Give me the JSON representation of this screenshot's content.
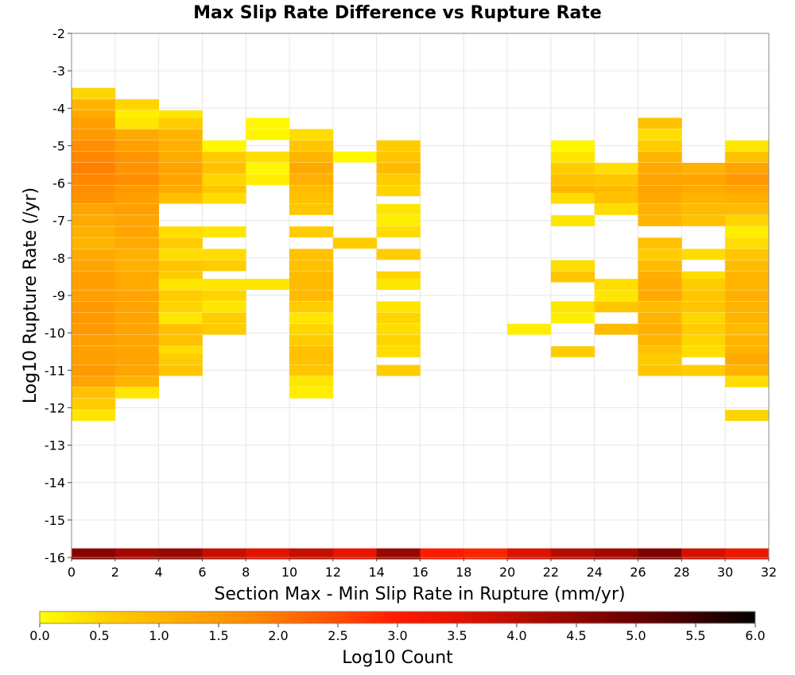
{
  "chart_data": {
    "type": "heatmap",
    "title": "Max Slip Rate Difference vs Rupture Rate",
    "xlabel": "Section Max - Min Slip Rate in Rupture (mm/yr)",
    "ylabel": "Log10 Rupture Rate (/yr)",
    "xlim": [
      0,
      32
    ],
    "ylim": [
      -16,
      -2
    ],
    "x_ticks": [
      "0",
      "2",
      "4",
      "6",
      "8",
      "10",
      "12",
      "14",
      "16",
      "18",
      "20",
      "22",
      "24",
      "26",
      "28",
      "30",
      "32"
    ],
    "y_ticks": [
      "-2",
      "-3",
      "-4",
      "-5",
      "-6",
      "-7",
      "-8",
      "-9",
      "-10",
      "-11",
      "-12",
      "-13",
      "-14",
      "-15",
      "-16"
    ],
    "grid": true,
    "colorbar": {
      "label": "Log10 Count",
      "range": [
        0,
        6
      ],
      "ticks": [
        "0.0",
        "0.5",
        "1.0",
        "1.5",
        "2.0",
        "2.5",
        "3.0",
        "3.5",
        "4.0",
        "4.5",
        "5.0",
        "5.5",
        "6.0"
      ],
      "colors": [
        "#ffff00",
        "#ffcc00",
        "#ffaa00",
        "#ff8800",
        "#ff5500",
        "#ff1a00",
        "#dd1100",
        "#aa0a00",
        "#770000",
        "#440000",
        "#000000"
      ]
    },
    "bin": {
      "x_width": 2,
      "y_height": 0.285
    },
    "cells": [
      [
        0,
        -3.6,
        0.5
      ],
      [
        0,
        -3.9,
        1.0
      ],
      [
        0,
        -4.2,
        1.2
      ],
      [
        0,
        -4.4,
        1.4
      ],
      [
        0,
        -4.7,
        1.5
      ],
      [
        0,
        -5.0,
        1.7
      ],
      [
        0,
        -5.3,
        1.8
      ],
      [
        0,
        -5.6,
        1.9
      ],
      [
        0,
        -5.9,
        1.8
      ],
      [
        0,
        -6.2,
        1.7
      ],
      [
        0,
        -6.4,
        1.6
      ],
      [
        0,
        -6.7,
        1.3
      ],
      [
        0,
        -7.0,
        1.2
      ],
      [
        0,
        -7.3,
        1.1
      ],
      [
        0,
        -7.6,
        1.0
      ],
      [
        0,
        -7.9,
        1.2
      ],
      [
        0,
        -8.2,
        1.3
      ],
      [
        0,
        -8.5,
        1.4
      ],
      [
        0,
        -8.7,
        1.4
      ],
      [
        0,
        -9.0,
        1.4
      ],
      [
        0,
        -9.3,
        1.5
      ],
      [
        0,
        -9.6,
        1.5
      ],
      [
        0,
        -9.9,
        1.5
      ],
      [
        0,
        -10.2,
        1.4
      ],
      [
        0,
        -10.5,
        1.4
      ],
      [
        0,
        -10.7,
        1.4
      ],
      [
        0,
        -11.0,
        1.5
      ],
      [
        0,
        -11.3,
        1.3
      ],
      [
        0,
        -11.6,
        0.8
      ],
      [
        0,
        -11.9,
        0.6
      ],
      [
        0,
        -12.2,
        0.3
      ],
      [
        2,
        -3.9,
        0.5
      ],
      [
        2,
        -4.2,
        0.2
      ],
      [
        2,
        -4.4,
        0.3
      ],
      [
        2,
        -4.7,
        1.2
      ],
      [
        2,
        -5.0,
        1.4
      ],
      [
        2,
        -5.3,
        1.6
      ],
      [
        2,
        -5.6,
        1.6
      ],
      [
        2,
        -5.9,
        1.7
      ],
      [
        2,
        -6.2,
        1.5
      ],
      [
        2,
        -6.4,
        1.4
      ],
      [
        2,
        -6.7,
        1.4
      ],
      [
        2,
        -7.0,
        1.3
      ],
      [
        2,
        -7.3,
        1.3
      ],
      [
        2,
        -7.6,
        1.2
      ],
      [
        2,
        -7.9,
        1.1
      ],
      [
        2,
        -8.2,
        1.1
      ],
      [
        2,
        -8.5,
        1.2
      ],
      [
        2,
        -8.7,
        1.2
      ],
      [
        2,
        -9.0,
        1.3
      ],
      [
        2,
        -9.3,
        1.3
      ],
      [
        2,
        -9.6,
        1.3
      ],
      [
        2,
        -9.9,
        1.3
      ],
      [
        2,
        -10.2,
        1.3
      ],
      [
        2,
        -10.5,
        1.3
      ],
      [
        2,
        -10.7,
        1.3
      ],
      [
        2,
        -11.0,
        1.3
      ],
      [
        2,
        -11.3,
        1.0
      ],
      [
        2,
        -11.6,
        0.3
      ],
      [
        4,
        -4.2,
        0.3
      ],
      [
        4,
        -4.4,
        0.6
      ],
      [
        4,
        -4.7,
        1.0
      ],
      [
        4,
        -5.0,
        1.1
      ],
      [
        4,
        -5.3,
        1.2
      ],
      [
        4,
        -5.6,
        1.3
      ],
      [
        4,
        -5.9,
        1.3
      ],
      [
        4,
        -6.2,
        1.2
      ],
      [
        4,
        -6.4,
        0.8
      ],
      [
        4,
        -7.3,
        0.4
      ],
      [
        4,
        -7.6,
        0.6
      ],
      [
        4,
        -7.9,
        0.4
      ],
      [
        4,
        -8.2,
        0.7
      ],
      [
        4,
        -8.5,
        0.6
      ],
      [
        4,
        -8.7,
        0.3
      ],
      [
        4,
        -9.0,
        0.6
      ],
      [
        4,
        -9.3,
        0.5
      ],
      [
        4,
        -9.6,
        0.3
      ],
      [
        4,
        -9.9,
        0.8
      ],
      [
        4,
        -10.2,
        0.8
      ],
      [
        4,
        -10.5,
        0.4
      ],
      [
        4,
        -10.7,
        0.6
      ],
      [
        4,
        -11.0,
        0.7
      ],
      [
        6,
        -5.0,
        0.1
      ],
      [
        6,
        -5.3,
        0.6
      ],
      [
        6,
        -5.6,
        0.8
      ],
      [
        6,
        -5.9,
        0.5
      ],
      [
        6,
        -6.2,
        0.7
      ],
      [
        6,
        -6.4,
        0.4
      ],
      [
        6,
        -7.3,
        0.3
      ],
      [
        6,
        -7.9,
        0.4
      ],
      [
        6,
        -8.2,
        0.6
      ],
      [
        6,
        -8.7,
        0.3
      ],
      [
        6,
        -9.0,
        0.5
      ],
      [
        6,
        -9.3,
        0.3
      ],
      [
        6,
        -9.6,
        0.6
      ],
      [
        6,
        -9.9,
        0.6
      ],
      [
        8,
        -4.4,
        0.1
      ],
      [
        8,
        -4.7,
        0.1
      ],
      [
        8,
        -5.3,
        0.4
      ],
      [
        8,
        -5.6,
        0.1
      ],
      [
        8,
        -5.9,
        0.2
      ],
      [
        8,
        -8.7,
        0.3
      ],
      [
        10,
        -4.7,
        0.4
      ],
      [
        10,
        -5.0,
        0.7
      ],
      [
        10,
        -5.3,
        1.0
      ],
      [
        10,
        -5.6,
        1.2
      ],
      [
        10,
        -5.9,
        1.1
      ],
      [
        10,
        -6.2,
        0.9
      ],
      [
        10,
        -6.4,
        0.8
      ],
      [
        10,
        -6.7,
        0.7
      ],
      [
        10,
        -7.3,
        0.6
      ],
      [
        10,
        -7.9,
        0.8
      ],
      [
        10,
        -8.2,
        0.8
      ],
      [
        10,
        -8.5,
        0.9
      ],
      [
        10,
        -8.7,
        0.9
      ],
      [
        10,
        -9.0,
        0.9
      ],
      [
        10,
        -9.3,
        0.6
      ],
      [
        10,
        -9.6,
        0.3
      ],
      [
        10,
        -9.9,
        0.5
      ],
      [
        10,
        -10.2,
        0.6
      ],
      [
        10,
        -10.5,
        0.8
      ],
      [
        10,
        -10.7,
        0.8
      ],
      [
        10,
        -11.0,
        0.7
      ],
      [
        10,
        -11.3,
        0.3
      ],
      [
        10,
        -11.6,
        0.2
      ],
      [
        12,
        -5.3,
        0.1
      ],
      [
        12,
        -7.6,
        0.6
      ],
      [
        14,
        -5.0,
        0.6
      ],
      [
        14,
        -5.3,
        0.7
      ],
      [
        14,
        -5.6,
        0.9
      ],
      [
        14,
        -5.9,
        0.6
      ],
      [
        14,
        -6.2,
        0.5
      ],
      [
        14,
        -6.7,
        0.3
      ],
      [
        14,
        -7.0,
        0.2
      ],
      [
        14,
        -7.3,
        0.4
      ],
      [
        14,
        -7.9,
        0.6
      ],
      [
        14,
        -8.5,
        0.5
      ],
      [
        14,
        -8.7,
        0.3
      ],
      [
        14,
        -9.3,
        0.3
      ],
      [
        14,
        -9.6,
        0.5
      ],
      [
        14,
        -9.9,
        0.4
      ],
      [
        14,
        -10.2,
        0.5
      ],
      [
        14,
        -10.5,
        0.4
      ],
      [
        14,
        -11.0,
        0.6
      ],
      [
        20,
        -9.9,
        0.2
      ],
      [
        22,
        -5.0,
        0.1
      ],
      [
        22,
        -5.3,
        0.3
      ],
      [
        22,
        -5.6,
        0.6
      ],
      [
        22,
        -5.9,
        0.8
      ],
      [
        22,
        -6.2,
        1.0
      ],
      [
        22,
        -6.4,
        0.4
      ],
      [
        22,
        -7.0,
        0.3
      ],
      [
        22,
        -8.2,
        0.4
      ],
      [
        22,
        -8.5,
        0.7
      ],
      [
        22,
        -9.3,
        0.3
      ],
      [
        22,
        -9.6,
        0.2
      ],
      [
        22,
        -10.5,
        0.6
      ],
      [
        24,
        -5.6,
        0.4
      ],
      [
        24,
        -5.9,
        0.7
      ],
      [
        24,
        -6.2,
        0.9
      ],
      [
        24,
        -6.4,
        0.8
      ],
      [
        24,
        -6.7,
        0.4
      ],
      [
        24,
        -8.7,
        0.4
      ],
      [
        24,
        -9.0,
        0.3
      ],
      [
        24,
        -9.3,
        0.7
      ],
      [
        24,
        -9.9,
        0.9
      ],
      [
        26,
        -4.4,
        0.8
      ],
      [
        26,
        -4.7,
        0.4
      ],
      [
        26,
        -5.0,
        0.6
      ],
      [
        26,
        -5.3,
        1.0
      ],
      [
        26,
        -5.6,
        1.2
      ],
      [
        26,
        -5.9,
        1.3
      ],
      [
        26,
        -6.2,
        1.3
      ],
      [
        26,
        -6.4,
        1.2
      ],
      [
        26,
        -6.7,
        1.1
      ],
      [
        26,
        -7.0,
        1.0
      ],
      [
        26,
        -7.6,
        0.8
      ],
      [
        26,
        -7.9,
        0.6
      ],
      [
        26,
        -8.2,
        0.9
      ],
      [
        26,
        -8.5,
        1.1
      ],
      [
        26,
        -8.7,
        1.2
      ],
      [
        26,
        -9.0,
        1.2
      ],
      [
        26,
        -9.3,
        0.9
      ],
      [
        26,
        -9.6,
        1.0
      ],
      [
        26,
        -9.9,
        1.1
      ],
      [
        26,
        -10.2,
        1.0
      ],
      [
        26,
        -10.5,
        0.8
      ],
      [
        26,
        -10.7,
        0.6
      ],
      [
        26,
        -11.0,
        0.7
      ],
      [
        28,
        -5.6,
        1.1
      ],
      [
        28,
        -5.9,
        1.3
      ],
      [
        28,
        -6.2,
        1.2
      ],
      [
        28,
        -6.4,
        1.0
      ],
      [
        28,
        -6.7,
        0.9
      ],
      [
        28,
        -7.0,
        0.8
      ],
      [
        28,
        -7.9,
        0.4
      ],
      [
        28,
        -8.5,
        0.4
      ],
      [
        28,
        -8.7,
        0.6
      ],
      [
        28,
        -9.0,
        0.7
      ],
      [
        28,
        -9.3,
        0.7
      ],
      [
        28,
        -9.6,
        0.5
      ],
      [
        28,
        -9.9,
        0.6
      ],
      [
        28,
        -10.2,
        0.5
      ],
      [
        28,
        -10.5,
        0.4
      ],
      [
        28,
        -11.0,
        0.6
      ],
      [
        30,
        -5.0,
        0.3
      ],
      [
        30,
        -5.3,
        0.8
      ],
      [
        30,
        -5.6,
        1.3
      ],
      [
        30,
        -5.9,
        1.5
      ],
      [
        30,
        -6.2,
        1.3
      ],
      [
        30,
        -6.4,
        1.1
      ],
      [
        30,
        -6.7,
        0.9
      ],
      [
        30,
        -7.0,
        0.5
      ],
      [
        30,
        -7.3,
        0.2
      ],
      [
        30,
        -7.6,
        0.4
      ],
      [
        30,
        -7.9,
        0.7
      ],
      [
        30,
        -8.2,
        0.9
      ],
      [
        30,
        -8.5,
        1.0
      ],
      [
        30,
        -8.7,
        1.0
      ],
      [
        30,
        -9.0,
        1.1
      ],
      [
        30,
        -9.3,
        1.0
      ],
      [
        30,
        -9.6,
        1.0
      ],
      [
        30,
        -9.9,
        0.9
      ],
      [
        30,
        -10.2,
        1.0
      ],
      [
        30,
        -10.5,
        1.0
      ],
      [
        30,
        -10.7,
        1.2
      ],
      [
        30,
        -11.0,
        1.0
      ],
      [
        30,
        -11.3,
        0.4
      ],
      [
        30,
        -12.2,
        0.5
      ],
      [
        0,
        -15.9,
        4.6
      ],
      [
        2,
        -15.9,
        4.3
      ],
      [
        4,
        -15.9,
        4.4
      ],
      [
        6,
        -15.9,
        3.9
      ],
      [
        8,
        -15.9,
        3.5
      ],
      [
        10,
        -15.9,
        3.9
      ],
      [
        12,
        -15.9,
        3.4
      ],
      [
        14,
        -15.9,
        4.4
      ],
      [
        16,
        -15.9,
        3.0
      ],
      [
        18,
        -15.9,
        2.9
      ],
      [
        20,
        -15.9,
        3.6
      ],
      [
        22,
        -15.9,
        4.1
      ],
      [
        24,
        -15.9,
        4.3
      ],
      [
        26,
        -15.9,
        4.7
      ],
      [
        28,
        -15.9,
        3.7
      ],
      [
        30,
        -15.9,
        3.3
      ]
    ]
  }
}
